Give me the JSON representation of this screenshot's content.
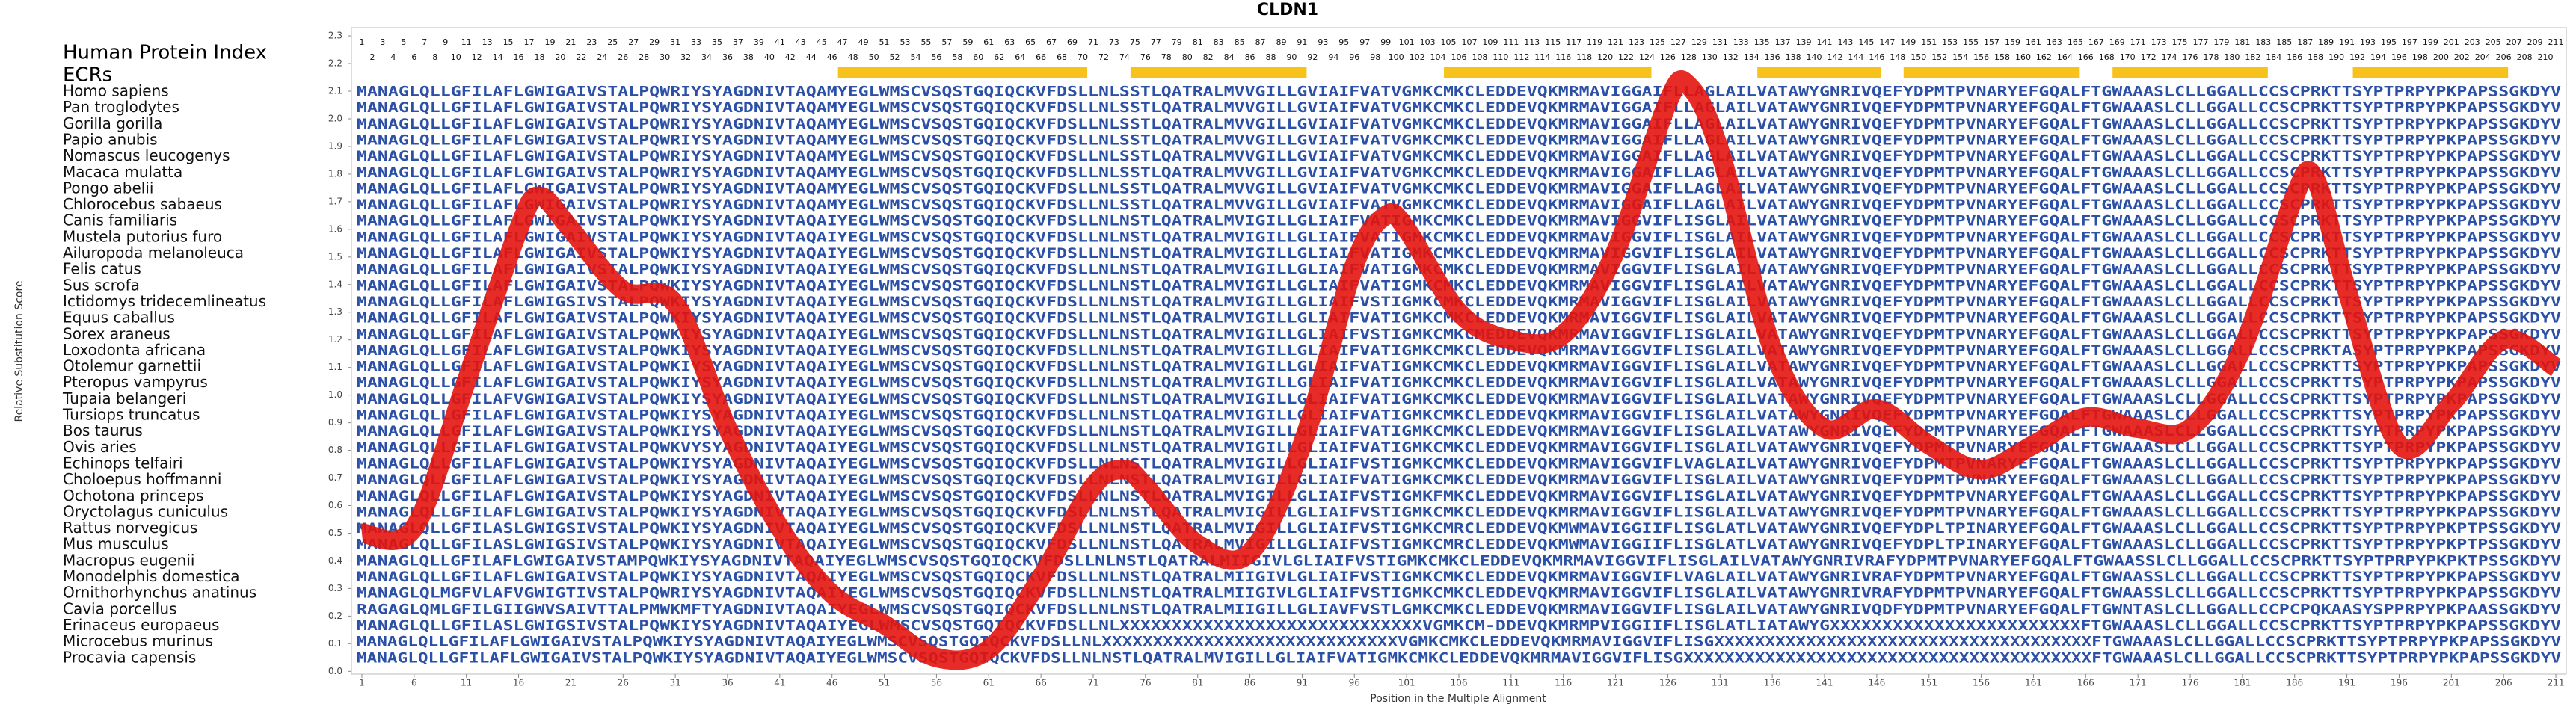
{
  "chart_data": {
    "type": "line",
    "title": "CLDN1",
    "ylabel": "Relative Substitution Score",
    "xlabel": "Position in the Multiple Alignment",
    "xlim": [
      0,
      212
    ],
    "ylim": [
      -0.01,
      2.33
    ],
    "xticks": [
      1,
      6,
      11,
      16,
      21,
      26,
      31,
      36,
      41,
      46,
      51,
      56,
      61,
      66,
      71,
      76,
      81,
      86,
      91,
      96,
      101,
      106,
      111,
      116,
      121,
      126,
      131,
      136,
      141,
      146,
      151,
      156,
      161,
      166,
      171,
      176,
      181,
      186,
      191,
      196,
      201,
      206,
      211
    ],
    "yticks": [
      {
        "value": 0,
        "label": "0.0"
      },
      0.1,
      0.2,
      0.3,
      0.4,
      0.5,
      0.6,
      0.7,
      0.8,
      0.9,
      {
        "value": 1,
        "label": "1.0"
      },
      1.1,
      1.2,
      1.3,
      1.4,
      1.5,
      1.6,
      1.7,
      1.8,
      1.9,
      {
        "value": 2,
        "label": "2.0"
      },
      2.1,
      2.2,
      2.3
    ],
    "series": [
      {
        "color": "#e4140e",
        "x": [
          1,
          6,
          11,
          16,
          18,
          21,
          26,
          31,
          36,
          41,
          46,
          51,
          56,
          61,
          66,
          71,
          74,
          76,
          81,
          86,
          91,
          96,
          99,
          101,
          106,
          111,
          116,
          121,
          126,
          128,
          131,
          136,
          141,
          146,
          151,
          156,
          161,
          166,
          171,
          176,
          181,
          186,
          188,
          191,
          196,
          201,
          206,
          211
        ],
        "values": [
          0.5,
          0.52,
          1.05,
          1.6,
          1.72,
          1.6,
          1.38,
          1.33,
          0.88,
          0.52,
          0.28,
          0.17,
          0.05,
          0.08,
          0.34,
          0.67,
          0.73,
          0.67,
          0.46,
          0.43,
          0.82,
          1.47,
          1.65,
          1.6,
          1.3,
          1.2,
          1.22,
          1.52,
          2.06,
          2.12,
          1.88,
          1.17,
          0.88,
          0.95,
          0.82,
          0.73,
          0.82,
          0.92,
          0.88,
          0.88,
          1.17,
          1.72,
          1.78,
          1.38,
          0.82,
          0.97,
          1.2,
          1.1
        ]
      }
    ]
  },
  "alignment": {
    "index_label": "Human Protein Index",
    "ecr_label": "ECRs",
    "positions": [
      1,
      2,
      3,
      4,
      5,
      6,
      7,
      8,
      9,
      10,
      11,
      12,
      13,
      14,
      15,
      16,
      17,
      18,
      19,
      20,
      21,
      22,
      23,
      24,
      25,
      26,
      27,
      28,
      29,
      30,
      31,
      32,
      33,
      34,
      35,
      36,
      37,
      38,
      39,
      40,
      41,
      42,
      43,
      44,
      45,
      46,
      47,
      48,
      49,
      50,
      51,
      52,
      53,
      54,
      55,
      56,
      57,
      58,
      59,
      60,
      61,
      62,
      63,
      64,
      65,
      66,
      67,
      68,
      69,
      70,
      71,
      72,
      73,
      74,
      75,
      76,
      77,
      78,
      79,
      80,
      81,
      82,
      83,
      84,
      85,
      86,
      87,
      88,
      89,
      90,
      91,
      92,
      93,
      94,
      95,
      96,
      97,
      98,
      99,
      100,
      101,
      102,
      103,
      104,
      105,
      106,
      107,
      108,
      109,
      110,
      111,
      112,
      113,
      114,
      115,
      116,
      117,
      118,
      119,
      120,
      121,
      122,
      123,
      124,
      125,
      126,
      127,
      128,
      129,
      130,
      131,
      132,
      133,
      134,
      135,
      136,
      137,
      138,
      139,
      140,
      141,
      142,
      143,
      144,
      145,
      146,
      147,
      148,
      149,
      150,
      151,
      152,
      153,
      154,
      155,
      156,
      157,
      158,
      159,
      160,
      161,
      162,
      163,
      164,
      165,
      166,
      167,
      168,
      169,
      170,
      171,
      172,
      173,
      174,
      175,
      176,
      177,
      178,
      179,
      180,
      181,
      182,
      183,
      184,
      185,
      186,
      187,
      188,
      189,
      190,
      191,
      192,
      193,
      194,
      195,
      196,
      197,
      198,
      199,
      200,
      201,
      202,
      203,
      204,
      205,
      206,
      207,
      208,
      209,
      210,
      211
    ],
    "ecrs": [
      [
        47,
        70
      ],
      [
        75,
        91
      ],
      [
        105,
        124
      ],
      [
        135,
        146
      ],
      [
        149,
        165
      ],
      [
        169,
        183
      ],
      [
        192,
        206
      ]
    ],
    "species": [
      {
        "name": "Homo sapiens",
        "sequence": "MANAGLQLLGFILAFLGWIGAIVSTALPQWRIYSYAGDNIVTAQAMYEGLWMSCVSQSTGQIQCKVFDSLLNLSSTLQATRALMVVGILLGVIAIFVATVGMKCMKCLEDDEVQKMRMAVIGGAIFLLAGLAILVATAWYGNRIVQEFYDPMTPVNARYEFGQALFTGWAAASLCLLGGALLCCSCPRKTTSYPTPRPYPKPAPSSGKDYV"
      },
      {
        "name": "Pan troglodytes",
        "sequence": "MANAGLQLLGFILAFLGWIGAIVSTALPQWRIYSYAGDNIVTAQAMYEGLWMSCVSQSTGQIQCKVFDSLLNLSSTLQATRALMVVGILLGVIAIFVATVGMKCMKCLEDDEVQKMRMAVIGGAIFLLAGLAILVATAWYGNRIVQEFYDPMTPVNARYEFGQALFTGWAAASLCLLGGALLCCSCPRKTTSYPTPRPYPKPAPSSGKDYV"
      },
      {
        "name": "Gorilla gorilla",
        "sequence": "MANAGLQLLGFILAFLGWIGAIVSTALPQWRIYSYAGDNIVTAQAMYEGLWMSCVSQSTGQIQCKVFDSLLNLSSTLQATRALMVVGILLGVIAIFVATVGMKCMKCLEDDEVQKMRMAVIGGAIFLLAGLAILVATAWYGNRIVQEFYDPMTPVNARYEFGQALFTGWAAASLCLLGGALLCCSCPRKTTSYPTPRPYPKPAPSSGKDYV"
      },
      {
        "name": "Papio anubis",
        "sequence": "MANAGLQLLGFILAFLGWIGAIVSTALPQWRIYSYAGDNIVTAQAMYEGLWMSCVSQSTGQIQCKVFDSLLNLSSTLQATRALMVVGILLGVIAIFVATVGMKCMKCLEDDEVQKMRMAVIGGAIFLLAGLAILVATAWYGNRIVQEFYDPMTPVNARYEFGQALFTGWAAASLCLLGGALLCCSCPRKTTSYPTPRPYPKPAPSSGKDYV"
      },
      {
        "name": "Nomascus leucogenys",
        "sequence": "MANAGLQLLGFILAFLGWIGAIVSTALPQWRIYSYAGDNIVTAQAMYEGLWMSCVSQSTGQIQCKVFDSLLNLSSTLQATRALMVVGILLGVIAIFVATVGMKCMKCLEDDEVQKMRMAVIGGAIFLLAGLAILVATAWYGNRIVQEFYDPMTPVNARYEFGQALFTGWAAASLCLLGGALLCCSCPRKTTSYPTPRPYPKPAPSSGKDYV"
      },
      {
        "name": "Macaca mulatta",
        "sequence": "MANAGLQLLGFILAFLGWIGAIVSTALPQWRIYSYAGDNIVTAQAMYEGLWMSCVSQSTGQIQCKVFDSLLNLSSTLQATRALMVVGILLGVIAIFVATVGMKCMKCLEDDEVQKMRMAVIGGAIFLLAGLAILVATAWYGNRIVQEFYDPMTPVNARYEFGQALFTGWAAASLCLLGGALLCCSCPRKTTSYPTPRPYPKPAPSSGKDYV"
      },
      {
        "name": "Pongo abelii",
        "sequence": "MANAGLQLLGFILAFLGWIGAIVSTALPQWRIYSYAGDNIVTAQAMYEGLWMSCVSQSTGQIQCKVFDSLLNLSSTLQATRALMVVGILLGVIAIFVATVGMKCMKCLEDDEVQKMRMAVIGGAIFLLAGLAILVATAWYGNRIVQEFYDPMTPVNARYEFGQALFTGWAAASLCLLGGALLCCSCPRKTTSYPTPRPYPKPAPSSGKDYV"
      },
      {
        "name": "Chlorocebus sabaeus",
        "sequence": "MANAGLQLLGFILAFLGWIGAIVSTALPQWRIYSYAGDNIVTAQAMYEGLWMSCVSQSTGQIQCKVFDSLLNLSSTLQATRALMVVGILLGVIAIFVATVGMKCMKCLEDDEVQKMRMAVIGGAIFLLAGLAILVATAWYGNRIVQEFYDPMTPVNARYEFGQALFTGWAAASLCLLGGALLCCSCPRKTTSYPTPRPYPKPAPSSGKDYV"
      },
      {
        "name": "Canis familiaris",
        "sequence": "MANAGLQLLGFILAFLGWIGAIVSTALPQWKIYSYAGDNIVTAQAIYEGLWMSCVSQSTGQIQCKVFDSLLNLNSTLQATRALMVIGILLGLIAIFVATIGMKCMKCLEDDEVQKMRMAVIGGVIFLISGLAILVATAWYGNRIVQEFYDPMTPVNARYEFGQALFTGWAAASLCLLGGALLCCSCPRKTTSYPTPRPYPKPAPSSGKDYV"
      },
      {
        "name": "Mustela putorius furo",
        "sequence": "MANAGLQLLGFILAFLGWIGAIVSTALPQWKIYSYAGDNIVTAQAIYEGLWMSCVSQSTGQIQCKVFDSLLNLNSTLQATRALMVIGILLGLIAIFVATIGMKCMKCLEDDEVQKMRMAVIGGVIFLISGLAILVATAWYGNRIVQEFYDPMTPVNARYEFGQALFTGWAAASLCLLGGALLCCSCPRKTTSYPTPRPYPKPAPSSGKDYV"
      },
      {
        "name": "Ailuropoda melanoleuca",
        "sequence": "MANAGLQLLGFILAFLGWIGAIVSTALPQWKIYSYAGDNIVTAQAIYEGLWMSCVSQSTGQIQCKVFDSLLNLNSTLQATRALMVIGILLGLIAIFVATIGMKCMKCLEDDEVQKMRMAVIGGVIFLISGLAILVATAWYGNRIVQEFYDPMTPVNARYEFGQALFTGWAAASLCLLGGALLCCSCPRKTTSYPTPRPYPKPAPSSGKDYV"
      },
      {
        "name": "Felis catus",
        "sequence": "MANAGLQLLGFILAFLGWIGAIVSTALPQWKIYSYAGDNIVTAQAIYEGLWMSCVSQSTGQIQCKVFDSLLNLNSTLQATRALMVIGILLGLIAIFVATIGMKCMKCLEDDEVQKMRMAVIGGVIFLISGLAILVATAWYGNRIVQEFYDPMTPVNARYEFGQALFTGWAAASLCLLGGALLCCSCPRKTTSYPTPRPYPKPAPSSGKDYV"
      },
      {
        "name": "Sus scrofa",
        "sequence": "MANAGLQLLGFILAFLGWIGAIVSTALPQWKIYSYAGDNIVTAQAIYEGLWMSCVSQSTGQIQCKVFDSLLNLNSTLQATRALMVIGILLGLIAIFVATIGMKCMKCLEDDEVQKMRMAVIGGVIFLISGLAILVATAWYGNRIVQEFYDPMTPVNARYEFGQALFTGWAAASLCLLGGALLCCSCPRKTTSYPTPRPYPKPAPSSGKDYV"
      },
      {
        "name": "Ictidomys tridecemlineatus",
        "sequence": "MANAGLQLLGFILAFLGWIGSIVSTALPQWKIYSYAGDNIVTAQAIYEGLWMSCVSQSTGQIQCKVFDSLLNLNSTLQATRALMVIGILLGLIAIFVSTIGMKCMKCLEDDEVQKMRMAVIGGVIFLISGLAILVATAWYGNRIVQEFYDPMTPVNARYEFGQALFTGWAAASLCLLGGALLCCSCPRKTTSYPTPRPYPKPAPSSGKDYV"
      },
      {
        "name": "Equus caballus",
        "sequence": "MANAGLQLLGFILAFLGWIGAIVSTALPQWKIYSYAGDNIVTAQAIYEGLWMSCVSQSTGQIQCKVFDSLLNLNSTLQATRALMVIGILLGLIAIFVATIGMKCMKCLEDDEVQKMRMAVIGGVIFLISGLAILVATAWYGNRIVQEFYDPMTPVNARYEFGQALFTGWAAASLCLLGGALLCCSCPRKTTSYPTPRPYPKPAPSSGKDYV"
      },
      {
        "name": "Sorex araneus",
        "sequence": "MANAGLQLLGFILAFLGWIGAIVSTALPQWKIYSYAGDNIVTAQAIYEGLWMSCVSQSTGQIQCKVFDSLLNLNSTLQATRALMVIGILLGLIAIFVSTIGMKCMKCMEDDEVQKMRMAVIGGVIFLISGLAILVATAWYGNRIVQEFYDPMTPVNARYEFGQALFTGWAAASLCLLGGALLCCSCPRKTTSYPTPRPYPKPAPSSGKDYV"
      },
      {
        "name": "Loxodonta africana",
        "sequence": "MANAGLQLLGFILAFLGWIGAIVSTALPQWKIYSYAGDNIVTAQAIYEGLWMSCVSQSTGQIQCKVFDSLLNLNSTLQATRALMVIGILLGLIAIFVATIGMKCMKCLEDDEVQKMRMAVIGGVIFLISGLAILVATAWYGNRIVQEFYDPMTPVNARYEFGQALFTGWAAASLCLLGGALLCCSCPRKTASYPTPRPYPKPAPSSGKDYV"
      },
      {
        "name": "Otolemur garnettii",
        "sequence": "MANAGLQLLGFILAFLGWIGAIVSTALPQWKIYSYAGDNIVTAQAIYEGLWMSCVSQSTGQIQCKVFDSLLNLNSTLQATRALMVIGILLGLIAIFVATIGMKCMKCLEDDEVQKMRMAVIGGVIFLISGLAILVATAWYGNRIVQEFYDPMTPVNARYEFGQALFTGWAAASLCLLGGALLCCSCPRKTTSYPTPRPYPKPAPSSGKDYV"
      },
      {
        "name": "Pteropus vampyrus",
        "sequence": "MANAGLQLLGFILAFLGWIGAIVSTALPQWKIYSYAGDNIVTAQAIYEGLWMSCVSQSTGQIQCKVFDSLLNLNSTLQATRALMVIGILLGLIAIFVATIGMKCMKCLEDDEVQKMRMAVIGGVIFLISGLAILVATAWYGNRIVQEFYDPMTPVNARYEFGQALFTGWAAASLCLLGGALLCCSCPRKTTSYPTPRPYPKPAPSSGKDYV"
      },
      {
        "name": "Tupaia belangeri",
        "sequence": "MANAGLQLLGFILAFVGWIGAIVSTALPQWKIYSYAGDNIVTAQAIYEGLWMSCVSQSTGQIQCKVFDSLLNLNSTLQATRALMVIGILLGLIAIFVATIGMKCMKCLEDDEVQKMRMAVIGGVIFLISGLAILVATAWYGNRIVQEFYDPMTPVNARYEFGQALFTGWAAASLCLLGGALLCCSCPRKTTSYPTPRPYPKPAPSSGKDYV"
      },
      {
        "name": "Tursiops truncatus",
        "sequence": "MANAGLQLLGFILAFLGWIGAIVSTALPQWKIYSYAGDNIVTAQAIYEGLWMSCVSQSTGQIQCKVFDSLLNLNSTLQATRALMVIGILLGLIAIFVATIGMKCMKCLEDDEVQKMRMAVIGGVIFLISGLAILVATAWYGNRIVQEFYDPMTPVNARYEFGQALFTGWAAASLCLLGGALLCCSCPRKTTSYPTPRPYPKPAPSSGKDYV"
      },
      {
        "name": "Bos taurus",
        "sequence": "MANAGLQLLGFILAFLGWIGAIVSTALPQWKIYSYAGDNIVTAQAIYEGLWMSCVSQSTGQIQCKVFDSLLNLNSTLQATRALMVIGILLGLIAIFVATIGMKCMKCLEDDEVQKMRMAVIGGVIFLISGLAILVATAWYGNRIVQEFYDPMTPVNARYEFGQALFTGWAAASLCLLGGALLCCSCPRKTTSYPTPRPYPKPAPSSGKDYV"
      },
      {
        "name": "Ovis aries",
        "sequence": "MANAGLQLLGFILAFLGWIGAIVSTALPQWKVYSYAGDNIVTAQAIYEGLWMSCVSQSTGQIQCKVFDSLLNLNSTLQATRALMVIGILLGLIAIFVATIGMKCMKCLEDDEVQKMRMAVIGGVIFLISGLAILVATAWYGNRIVQEFYDPMTPVNARYEFGQALFTGWAAASLCLLGGALLCCSCPRKTTSYPTPRPYPKPAPSSGKDYV"
      },
      {
        "name": "Echinops telfairi",
        "sequence": "MANAGLQLLGFILAFLGWIGAIVSTALPQWKIYSYAGDNIVTAQAIYEGLWMSCVSQSTGQIQCKVFDSLLNLNSTLQATRALMVIGILLGLIAIFVSTIGMKCMKCLEDDEVQKMRMAVIGGVIFLVAGLAILVATAWYGNRIVQEFYDPMTPVNARYEFGQALFTGWAAASLCLLGGALLCCSCPRKTTSYPTPRPYPKPAPSSGKDYV"
      },
      {
        "name": "Choloepus hoffmanni",
        "sequence": "MANAGLQLLGFILAFLGWIGAIVSTALPQWKIYSYAGDNIVTAQAIYEGLWMSCVSQSTGQIQCKVFDSLLNLNSTLQATRALMVIGILLGLIAIFVATIGMKCMKCLEDDEVQKMRMAVIGGVIFLISGLAILVATAWYGNRIVQEFYDPMTPVNARYEFGQALFTGWAAASLCLLGGALLCCSCPRKTTSYPTPRPYPKPAPSSGKDYV"
      },
      {
        "name": "Ochotona princeps",
        "sequence": "MANAGLQLLGFILAFLGWIGAIVSTALPQWKIYSYAGDNIVTAQAIYEGLWMSCVSQSTGQIQCKVFDSLLNLNSTLQATRALMVIGILLGLIAIFVSTIGMKFMKCLEDDEVQKMRMAVIGGVIFLISGLAILVATAWYGNRIVQEFYDPMTPVNARYEFGQALFTGWAAASLCLLGGALLCCSCPRKTTSYPTPRPYPKPAPSSGKDYV"
      },
      {
        "name": "Oryctolagus cuniculus",
        "sequence": "MANAGLQLLGFILAFLGWIGAIVSTALPQWKIYSYAGDNIVTAQAIYEGLWMSCVSQSTGQIQCKVFDSLLNLNSTLQATRALMVIGILLGLIAIFVSTIGMKCMKCLEDDEVQKMRMAVIGGVIFLISGLAILVATAWYGNRIVQEFYDPMTPVNARYEFGQALFTGWAAASLCLLGGALLCCSCPRKTTSYPTPRPYPKPAPSSGKDYV"
      },
      {
        "name": "Rattus norvegicus",
        "sequence": "MANAGLQLLGFILASLGWIGSIVSTALPQWKIYSYAGDNIVTAQAIYEGLWMSCVSQSTGQIQCKVFDSLLNLNSTLQATRALMVIGILLGLIAIFVSTIGMKCMRCLEDDEVQKMWMAVIGGIIFLISGLATLVATAWYGNRIVQEFYDPLTPINARYEFGQALFTGWAAASLCLLGGALLCCSCPRKTTSYPTPRPYPKPTPSSGKDYV"
      },
      {
        "name": "Mus musculus",
        "sequence": "MANAGLQLLGFILASLGWIGSIVSTALPQWKIYSYAGDNIVTAQAIYEGLWMSCVSQSTGQIQCKVFDSLLNLNSTLQATRALMVIGILLGLIAIFVSTIGMKCMRCLEDDEVQKMWMAVIGGIIFLISGLATLVATAWYGNRIVQEFYDPLTPINARYEFGQALFTGWAAASLCLLGGALLCCSCPRKTTSYPTPRPYPKPTPSSGKDYV"
      },
      {
        "name": "Macropus eugenii",
        "sequence": "MANAGLQLLGFILAFLGWIGAIVSTAMPQWKIYSYAGDNIVTAQAIYEGLWMSCVSQSTGQIQCKVFDSLLNLNSTLQATRALMIIGIVLGLIAIFVSTIGMKCMKCLEDDEVQKMRMAVIGGVIFLISGLAILVATAWYGNRIVRAFYDPMTPVNARYEFGQALFTGWAASSLCLLGGALLCCSCPRKTTSYPTPRPYPKPKTPSSGKDYV"
      },
      {
        "name": "Monodelphis domestica",
        "sequence": "MANAGLQLLGFILAFLGWIGAIVSTALPQWKIYSYAGDNIVTAQAIYEGLWMSCVSQSTGQIQCKVFDSLLNLNSTLQATRALMIIGIVLGLIAIFVSTIGMKCMKCLEDDEVQKMRMAVIGGVIFLVAGLAILVATAWYGNRIVRAFYDPMTPVNARYEFGQALFTGWAASSLCLLGGALLCCSCPRKTTSYPTPRPYPKPAPSSGKDYV"
      },
      {
        "name": "Ornithorhynchus anatinus",
        "sequence": "MANAGLQLMGFVLAFVGWIGTIVSTALPQWRIYSYAGDNIVTAQAIYEGLWMSCVSQSTGQIQCKVFDSLLNLNSTLQATRALMIIGIVLGLIAIFVSTIGMKCMKCLEDDEVQKMRMAVIGGVIFLISGLAILVATAWYGNRIVRAFYDPMTPVNARYEFGQALFTGWAASSLCLLGGALLCCSCPRKTTSYPTPRPYPKPAPSSGKDYV"
      },
      {
        "name": "Cavia porcellus",
        "sequence": "RAGAGLQMLGFILGIIGWVSAIVTTALPMWKMFTYAGDNIVTAQAIYEGLWMSCVSQSTGQIQCKVFDSLLNLNSTLQATRALMIIGILLGLIAVFVSTLGMKCMKCLEDDEVQKMRMAVIGGVIFLISGLAILVATAWYGNRIVQDFYDPMTPVNARYEFGQALFTGWNTASLCLLGGALLCCPCPQKAASYSPPRPYPKPAASSGKDYV"
      },
      {
        "name": "Erinaceus europaeus",
        "sequence": "MANAGLQLLGFILASLGWIGSIVSTALPQWKIYSYAGDNIVTAQAIYEGLWMSCVSQSTGQIQCKVFDSLLNLXXXXXXXXXXXXXXXXXXXXXXXXXXXXXVGMKCM-DDEVQKMRMPVIGGIIFLISGLATLIATAWYGXXXXXXXXXXXXXXXXXXXXXXXXFTGWAAASLCLLGGALLCCSCPRKTTSYPTPRPYPKPAPSSGKDYV"
      },
      {
        "name": "Microcebus murinus",
        "sequence": "MANAGLQLLGFILAFLGWIGAIVSTALPQWKIYSYAGDNIVTAQAIYEGLWMSCVSQSTGQIQCKVFDSLLNLXXXXXXXXXXXXXXXXXXXXXXXXXXXXXVGMKCMKCLEDDEVQKMRMAVIGGVIFLISGXXXXXXXXXXXXXXXXXXXXXXXXXXXXXXXXXXXXXFTGWAAASLCLLGGALLCCSCPRKTTSYPTPRPYPKPAPSSGKDYV"
      },
      {
        "name": "Procavia capensis",
        "sequence": "MANAGLQLLGFILAFLGWIGAIVSTALPQWKIYSYAGDNIVTAQAIYEGLWMSCVSQSTGQIQCKVFDSLLNLNSTLQATRALMVIGILLGLIAIFVATIGMKCMKCLEDDEVQKMRMAVIGGVIFLISGXXXXXXXXXXXXXXXXXXXXXXXXXXXXXXXXXXXXXXXXFTGWAAASLCLLGGALLCCSCPRKTTSYPTPRPYPKPAPSSGKDYV"
      }
    ]
  }
}
